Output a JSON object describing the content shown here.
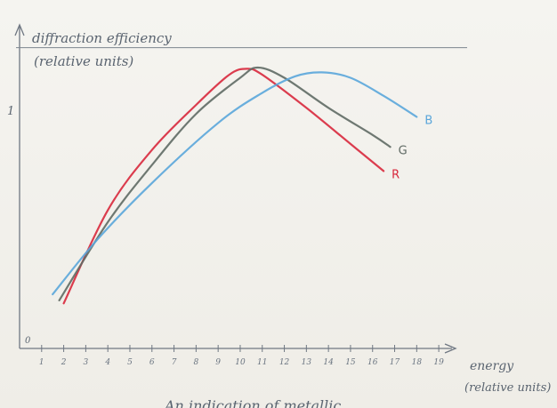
{
  "chart_data": {
    "type": "line",
    "ylabel": [
      "diffraction efficiency",
      "(relative units)"
    ],
    "xlabel": [
      "energy",
      "(relative units)"
    ],
    "caption": "An indication of metallic",
    "y_marker": "1",
    "origin_label": "0",
    "x_ticks": [
      "1",
      "2",
      "3",
      "4",
      "5",
      "6",
      "7",
      "8",
      "9",
      "10",
      "11",
      "12",
      "13",
      "14",
      "15",
      "16",
      "17",
      "18",
      "19"
    ],
    "xlim": [
      0,
      19.6
    ],
    "ylim": [
      0,
      1.07
    ],
    "reference_line": {
      "y": 1
    },
    "series": [
      {
        "name": "R",
        "color": "#d8283c",
        "points": [
          [
            2.0,
            0.15
          ],
          [
            4.0,
            0.46
          ],
          [
            6.0,
            0.66
          ],
          [
            8.0,
            0.81
          ],
          [
            9.5,
            0.91
          ],
          [
            10.3,
            0.93
          ],
          [
            11.0,
            0.91
          ],
          [
            13.0,
            0.8
          ],
          [
            15.0,
            0.68
          ],
          [
            16.5,
            0.59
          ]
        ]
      },
      {
        "name": "G",
        "color": "#5f6a64",
        "points": [
          [
            1.8,
            0.16
          ],
          [
            4.0,
            0.42
          ],
          [
            6.0,
            0.61
          ],
          [
            8.0,
            0.78
          ],
          [
            10.0,
            0.9
          ],
          [
            10.8,
            0.934
          ],
          [
            12.0,
            0.9
          ],
          [
            14.0,
            0.8
          ],
          [
            16.0,
            0.71
          ],
          [
            16.8,
            0.67
          ]
        ]
      },
      {
        "name": "B",
        "color": "#5aa6da",
        "points": [
          [
            1.5,
            0.18
          ],
          [
            3.5,
            0.36
          ],
          [
            6.0,
            0.55
          ],
          [
            9.0,
            0.75
          ],
          [
            11.0,
            0.85
          ],
          [
            12.5,
            0.905
          ],
          [
            13.7,
            0.918
          ],
          [
            15.0,
            0.9
          ],
          [
            16.5,
            0.84
          ],
          [
            18.0,
            0.77
          ]
        ]
      }
    ]
  }
}
